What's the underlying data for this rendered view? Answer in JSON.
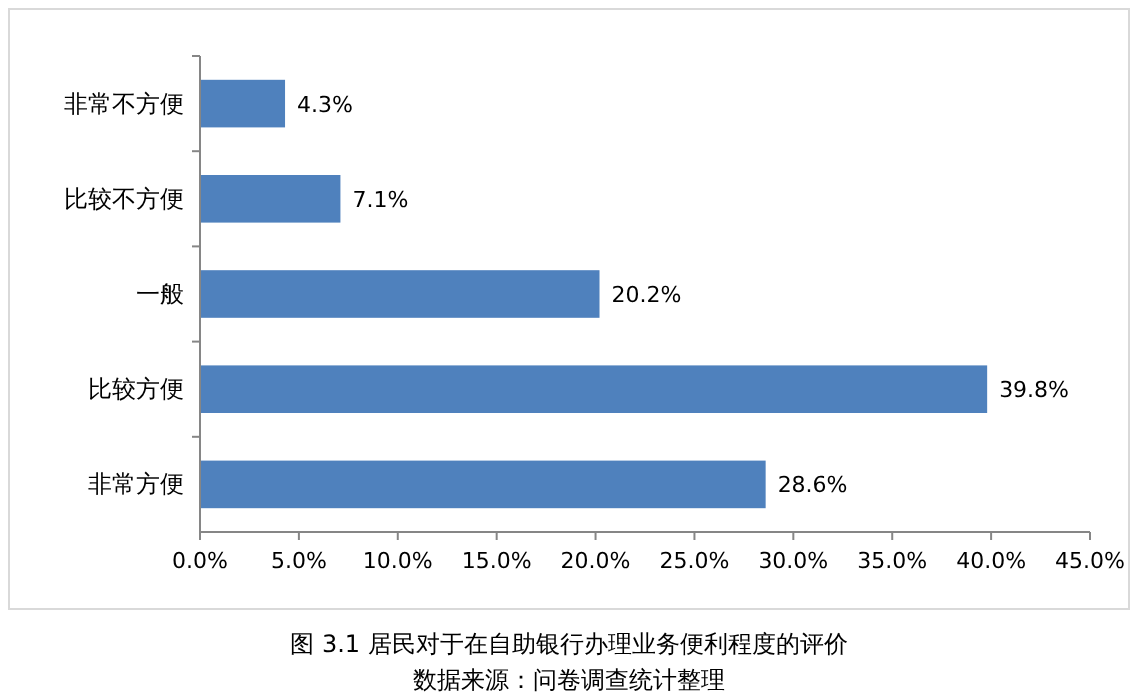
{
  "chart_data": {
    "type": "bar",
    "orientation": "horizontal",
    "title": "图 3.1 居民对于在自助银行办理业务便利程度的评价",
    "annotations": [
      "数据来源：问卷调查统计整理"
    ],
    "categories": [
      "非常不方便",
      "比较不方便",
      "一般",
      "比较方便",
      "非常方便"
    ],
    "values": [
      4.3,
      7.1,
      20.2,
      39.8,
      28.6
    ],
    "value_labels": [
      "4.3%",
      "7.1%",
      "20.2%",
      "39.8%",
      "28.6%"
    ],
    "color": "#4f81bd",
    "xlim": [
      0,
      45
    ],
    "xticks": [
      {
        "value": 0,
        "label": "0.0%"
      },
      {
        "value": 5,
        "label": "5.0%"
      },
      {
        "value": 10,
        "label": "10.0%"
      },
      {
        "value": 15,
        "label": "15.0%"
      },
      {
        "value": 20,
        "label": "20.0%"
      },
      {
        "value": 25,
        "label": "25.0%"
      },
      {
        "value": 30,
        "label": "30.0%"
      },
      {
        "value": 35,
        "label": "35.0%"
      },
      {
        "value": 40,
        "label": "40.0%"
      },
      {
        "value": 45,
        "label": "45.0%"
      }
    ],
    "grid": false
  }
}
